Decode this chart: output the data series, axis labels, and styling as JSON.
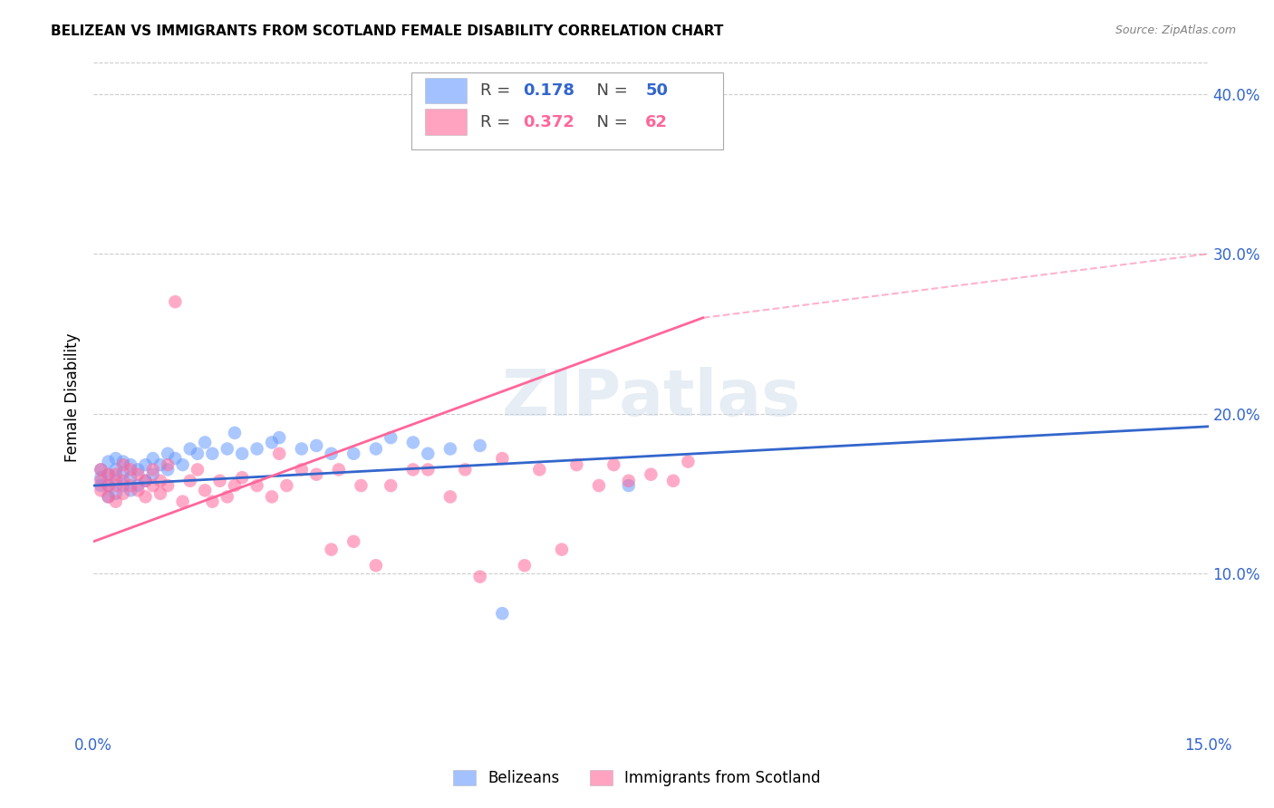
{
  "title": "BELIZEAN VS IMMIGRANTS FROM SCOTLAND FEMALE DISABILITY CORRELATION CHART",
  "source": "Source: ZipAtlas.com",
  "ylabel": "Female Disability",
  "xlim": [
    0.0,
    0.15
  ],
  "ylim": [
    0.0,
    0.42
  ],
  "yticks_right": [
    0.1,
    0.2,
    0.3,
    0.4
  ],
  "ytick_labels_right": [
    "10.0%",
    "20.0%",
    "30.0%",
    "40.0%"
  ],
  "grid_color": "#cccccc",
  "background_color": "#ffffff",
  "watermark": "ZIPatlas",
  "blue_color": "#6699ff",
  "pink_color": "#ff6699",
  "blue_line_color": "#3366cc",
  "pink_line_color": "#ff6699",
  "axis_label_color": "#3366cc",
  "belizeans_x": [
    0.001,
    0.001,
    0.001,
    0.002,
    0.002,
    0.002,
    0.002,
    0.003,
    0.003,
    0.003,
    0.003,
    0.004,
    0.004,
    0.004,
    0.005,
    0.005,
    0.005,
    0.006,
    0.006,
    0.007,
    0.007,
    0.008,
    0.008,
    0.009,
    0.01,
    0.01,
    0.011,
    0.012,
    0.013,
    0.014,
    0.015,
    0.016,
    0.018,
    0.019,
    0.02,
    0.022,
    0.024,
    0.025,
    0.028,
    0.03,
    0.032,
    0.035,
    0.038,
    0.04,
    0.043,
    0.045,
    0.048,
    0.052,
    0.055,
    0.072
  ],
  "belizeans_y": [
    0.155,
    0.16,
    0.165,
    0.148,
    0.155,
    0.162,
    0.17,
    0.15,
    0.158,
    0.165,
    0.172,
    0.155,
    0.163,
    0.17,
    0.152,
    0.16,
    0.168,
    0.155,
    0.165,
    0.158,
    0.168,
    0.162,
    0.172,
    0.168,
    0.165,
    0.175,
    0.172,
    0.168,
    0.178,
    0.175,
    0.182,
    0.175,
    0.178,
    0.188,
    0.175,
    0.178,
    0.182,
    0.185,
    0.178,
    0.18,
    0.175,
    0.175,
    0.178,
    0.185,
    0.182,
    0.175,
    0.178,
    0.18,
    0.075,
    0.155
  ],
  "scotland_x": [
    0.001,
    0.001,
    0.001,
    0.002,
    0.002,
    0.002,
    0.003,
    0.003,
    0.003,
    0.004,
    0.004,
    0.004,
    0.005,
    0.005,
    0.006,
    0.006,
    0.007,
    0.007,
    0.008,
    0.008,
    0.009,
    0.009,
    0.01,
    0.01,
    0.011,
    0.012,
    0.013,
    0.014,
    0.015,
    0.016,
    0.017,
    0.018,
    0.019,
    0.02,
    0.022,
    0.024,
    0.025,
    0.026,
    0.028,
    0.03,
    0.032,
    0.033,
    0.035,
    0.036,
    0.038,
    0.04,
    0.043,
    0.045,
    0.048,
    0.05,
    0.052,
    0.055,
    0.058,
    0.06,
    0.063,
    0.065,
    0.068,
    0.07,
    0.072,
    0.075,
    0.078,
    0.08
  ],
  "scotland_y": [
    0.152,
    0.158,
    0.165,
    0.148,
    0.155,
    0.162,
    0.145,
    0.155,
    0.162,
    0.15,
    0.158,
    0.168,
    0.155,
    0.165,
    0.152,
    0.162,
    0.148,
    0.158,
    0.155,
    0.165,
    0.15,
    0.158,
    0.155,
    0.168,
    0.27,
    0.145,
    0.158,
    0.165,
    0.152,
    0.145,
    0.158,
    0.148,
    0.155,
    0.16,
    0.155,
    0.148,
    0.175,
    0.155,
    0.165,
    0.162,
    0.115,
    0.165,
    0.12,
    0.155,
    0.105,
    0.155,
    0.165,
    0.165,
    0.148,
    0.165,
    0.098,
    0.172,
    0.105,
    0.165,
    0.115,
    0.168,
    0.155,
    0.168,
    0.158,
    0.162,
    0.158,
    0.17
  ]
}
